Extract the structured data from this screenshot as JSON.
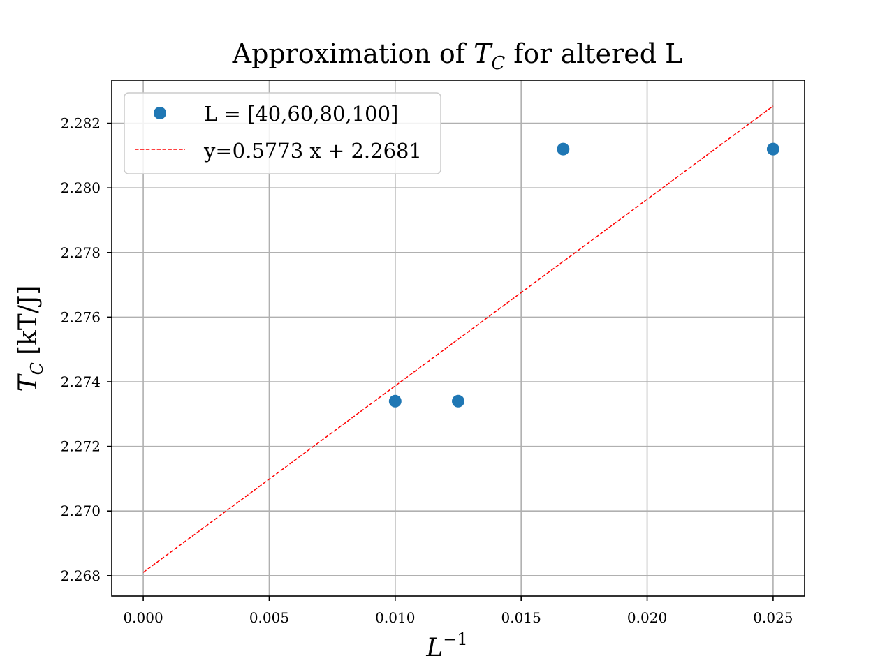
{
  "chart_data": {
    "type": "scatter",
    "title": {
      "prefix": "Approximation of ",
      "symbol": "T",
      "subscript": "C",
      "suffix": " for altered L"
    },
    "xlabel": {
      "symbol": "L",
      "superscript": "−1"
    },
    "ylabel": {
      "symbol": "T",
      "subscript": "C",
      "unit": "[kT/J]"
    },
    "xlim": [
      -0.00125,
      0.02625
    ],
    "ylim": [
      2.26737,
      2.28333
    ],
    "x_ticks": [
      "0.000",
      "0.005",
      "0.010",
      "0.015",
      "0.020",
      "0.025"
    ],
    "y_ticks": [
      "2.268",
      "2.270",
      "2.272",
      "2.274",
      "2.276",
      "2.278",
      "2.280",
      "2.282"
    ],
    "grid": true,
    "legend_position": "top-left",
    "series": [
      {
        "name": "L = [40,60,80,100]",
        "kind": "scatter",
        "color": "#1f77b4",
        "points": [
          {
            "x": 0.01,
            "y": 2.2734
          },
          {
            "x": 0.0125,
            "y": 2.2734
          },
          {
            "x": 0.016667,
            "y": 2.2812
          },
          {
            "x": 0.025,
            "y": 2.2812
          }
        ]
      },
      {
        "name": "y=0.5773 x + 2.2681",
        "kind": "line",
        "style": "dashed",
        "color": "#ff0000",
        "slope": 0.5773,
        "intercept": 2.2681,
        "x_range": [
          0.0,
          0.025
        ]
      }
    ]
  }
}
